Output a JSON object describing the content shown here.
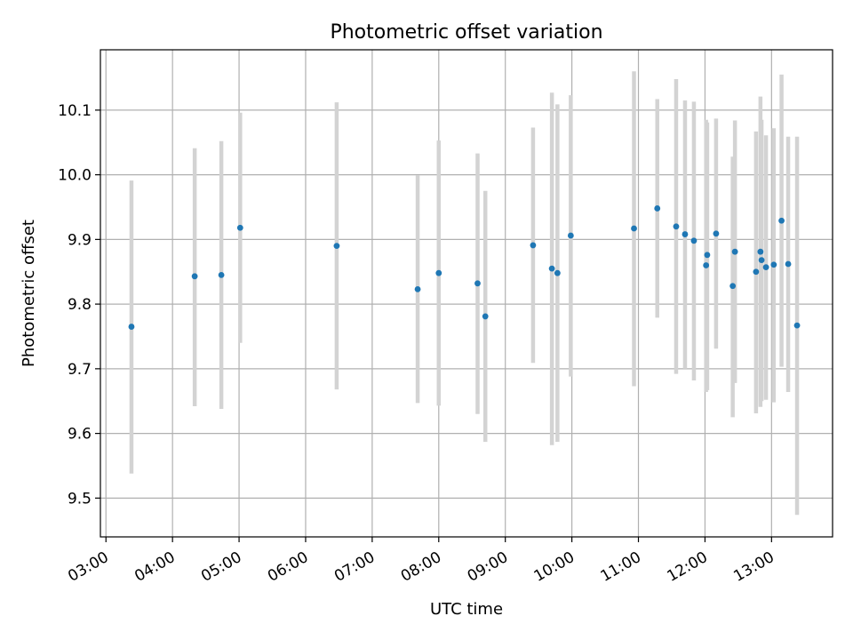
{
  "chart_data": {
    "type": "scatter",
    "title": "Photometric offset variation",
    "xlabel": "UTC time",
    "ylabel": "Photometric offset",
    "grid": true,
    "xlim": [
      "02:55",
      "13:55"
    ],
    "ylim": [
      9.44,
      10.1933
    ],
    "x_ticks": [
      "03:00",
      "04:00",
      "05:00",
      "06:00",
      "07:00",
      "08:00",
      "09:00",
      "10:00",
      "11:00",
      "12:00",
      "13:00"
    ],
    "y_ticks": [
      9.5,
      9.6,
      9.7,
      9.8,
      9.9,
      10.0,
      10.1
    ],
    "y_tick_labels": [
      "9.5",
      "9.6",
      "9.7",
      "9.8",
      "9.9",
      "10.0",
      "10.1"
    ],
    "colors": {
      "point": "#1f77b4",
      "errorbar": "#d3d3d3",
      "grid": "#b0b0b0"
    },
    "points": [
      {
        "t": "03:23",
        "y": 9.765,
        "lo": 9.538,
        "hi": 9.991
      },
      {
        "t": "04:20",
        "y": 9.843,
        "lo": 9.642,
        "hi": 10.041
      },
      {
        "t": "04:44",
        "y": 9.845,
        "lo": 9.638,
        "hi": 10.052
      },
      {
        "t": "05:01",
        "y": 9.918,
        "lo": 9.74,
        "hi": 10.096
      },
      {
        "t": "06:28",
        "y": 9.89,
        "lo": 9.668,
        "hi": 10.112
      },
      {
        "t": "07:41",
        "y": 9.823,
        "lo": 9.647,
        "hi": 9.999
      },
      {
        "t": "08:00",
        "y": 9.848,
        "lo": 9.643,
        "hi": 10.053
      },
      {
        "t": "08:35",
        "y": 9.832,
        "lo": 9.63,
        "hi": 10.033
      },
      {
        "t": "08:42",
        "y": 9.781,
        "lo": 9.587,
        "hi": 9.975
      },
      {
        "t": "09:25",
        "y": 9.891,
        "lo": 9.709,
        "hi": 10.073
      },
      {
        "t": "09:42",
        "y": 9.855,
        "lo": 9.582,
        "hi": 10.127
      },
      {
        "t": "09:47",
        "y": 9.848,
        "lo": 9.587,
        "hi": 10.109
      },
      {
        "t": "09:59",
        "y": 9.906,
        "lo": 9.688,
        "hi": 10.123
      },
      {
        "t": "10:56",
        "y": 9.917,
        "lo": 9.673,
        "hi": 10.16
      },
      {
        "t": "11:17",
        "y": 9.948,
        "lo": 9.779,
        "hi": 10.117
      },
      {
        "t": "11:34",
        "y": 9.92,
        "lo": 9.692,
        "hi": 10.148
      },
      {
        "t": "11:42",
        "y": 9.908,
        "lo": 9.7,
        "hi": 10.115
      },
      {
        "t": "11:50",
        "y": 9.898,
        "lo": 9.682,
        "hi": 10.113
      },
      {
        "t": "12:01",
        "y": 9.86,
        "lo": 9.664,
        "hi": 10.085
      },
      {
        "t": "12:02",
        "y": 9.876,
        "lo": 9.667,
        "hi": 10.081
      },
      {
        "t": "12:10",
        "y": 9.909,
        "lo": 9.731,
        "hi": 10.087
      },
      {
        "t": "12:25",
        "y": 9.828,
        "lo": 9.625,
        "hi": 10.028
      },
      {
        "t": "12:27",
        "y": 9.881,
        "lo": 9.678,
        "hi": 10.084
      },
      {
        "t": "12:46",
        "y": 9.85,
        "lo": 9.631,
        "hi": 10.067
      },
      {
        "t": "12:50",
        "y": 9.881,
        "lo": 9.641,
        "hi": 10.121
      },
      {
        "t": "12:51",
        "y": 9.868,
        "lo": 9.65,
        "hi": 10.085
      },
      {
        "t": "12:55",
        "y": 9.857,
        "lo": 9.652,
        "hi": 10.061
      },
      {
        "t": "13:02",
        "y": 9.861,
        "lo": 9.648,
        "hi": 10.072
      },
      {
        "t": "13:09",
        "y": 9.929,
        "lo": 9.703,
        "hi": 10.155
      },
      {
        "t": "13:15",
        "y": 9.862,
        "lo": 9.664,
        "hi": 10.059
      },
      {
        "t": "13:23",
        "y": 9.767,
        "lo": 9.474,
        "hi": 10.059
      }
    ]
  }
}
